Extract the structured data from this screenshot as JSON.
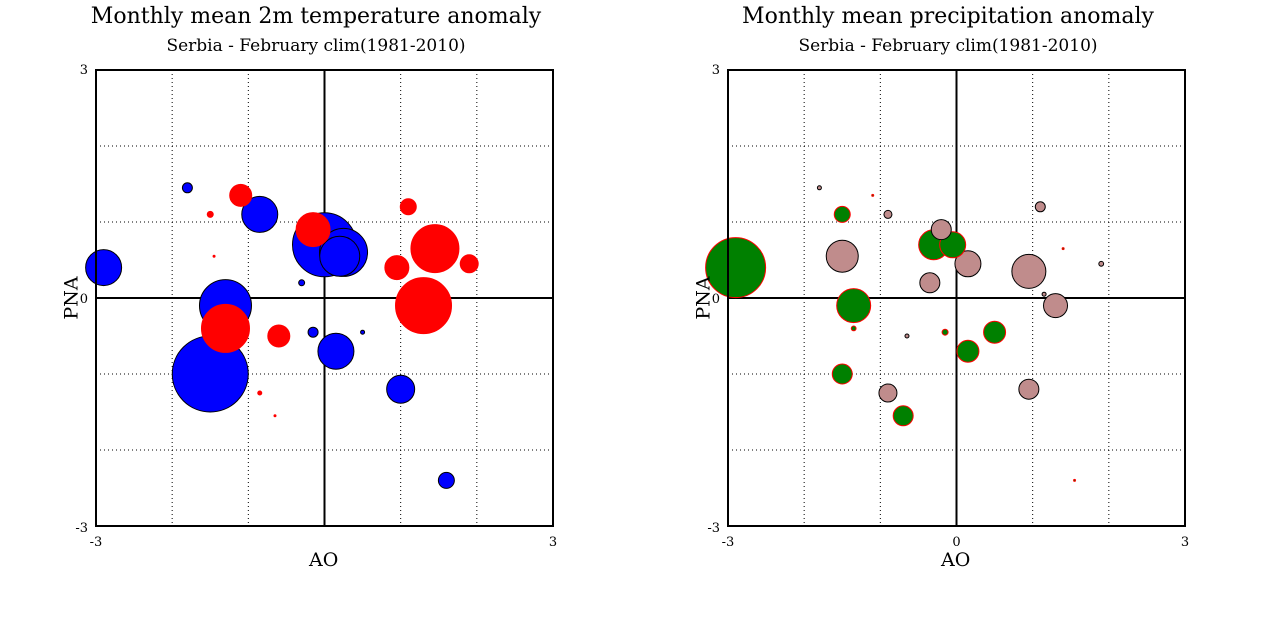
{
  "panels": [
    {
      "title": "Monthly mean 2m temperature anomaly",
      "subtitle": "Serbia - February  clim(1981-2010)"
    },
    {
      "title": "Monthly mean precipitation anomaly",
      "subtitle": "Serbia - February  clim(1981-2010)"
    }
  ],
  "chart_data": [
    {
      "type": "scatter",
      "title": "Monthly mean 2m temperature anomaly",
      "subtitle": "Serbia - February  clim(1981-2010)",
      "xlabel": "AO",
      "ylabel": "PNA",
      "xlim": [
        -3,
        3
      ],
      "ylim": [
        -3,
        3
      ],
      "x_ticks": [
        "-3",
        "3"
      ],
      "y_ticks": [
        "3",
        "0",
        "-3"
      ],
      "grid": true,
      "series": [
        {
          "color": "#0000ff",
          "points": [
            {
              "x": -2.9,
              "y": 0.4,
              "anomaly": 0.9
            },
            {
              "x": -1.8,
              "y": 1.45,
              "anomaly": 0.25
            },
            {
              "x": -0.85,
              "y": 1.1,
              "anomaly": 0.9
            },
            {
              "x": -0.3,
              "y": 0.2,
              "anomaly": 0.15
            },
            {
              "x": -0.15,
              "y": -0.45,
              "anomaly": 0.25
            },
            {
              "x": 0.2,
              "y": 0.55,
              "anomaly": 1.0
            },
            {
              "x": 0.25,
              "y": 0.6,
              "anomaly": 1.2
            },
            {
              "x": 0.0,
              "y": 0.7,
              "anomaly": 1.6
            },
            {
              "x": 0.5,
              "y": -0.45,
              "anomaly": 0.1
            },
            {
              "x": 0.15,
              "y": -0.7,
              "anomaly": 0.9
            },
            {
              "x": -1.3,
              "y": -0.1,
              "anomaly": 1.3
            },
            {
              "x": -1.5,
              "y": -1.0,
              "anomaly": 1.9
            },
            {
              "x": 1.0,
              "y": -1.2,
              "anomaly": 0.7
            },
            {
              "x": 1.6,
              "y": -2.4,
              "anomaly": 0.4
            }
          ]
        },
        {
          "color": "#ff0000",
          "points": [
            {
              "x": -1.1,
              "y": 1.35,
              "anomaly": 0.55
            },
            {
              "x": -1.5,
              "y": 1.1,
              "anomaly": 0.15
            },
            {
              "x": -1.45,
              "y": 0.55,
              "anomaly": 0.05
            },
            {
              "x": -0.15,
              "y": 0.9,
              "anomaly": 0.85
            },
            {
              "x": 1.1,
              "y": 1.2,
              "anomaly": 0.4
            },
            {
              "x": 1.45,
              "y": 0.65,
              "anomaly": 1.2
            },
            {
              "x": 1.9,
              "y": 0.45,
              "anomaly": 0.45
            },
            {
              "x": 0.95,
              "y": 0.4,
              "anomaly": 0.6
            },
            {
              "x": 1.3,
              "y": -0.1,
              "anomaly": 1.4
            },
            {
              "x": -1.3,
              "y": -0.4,
              "anomaly": 1.2
            },
            {
              "x": -0.6,
              "y": -0.5,
              "anomaly": 0.55
            },
            {
              "x": -0.85,
              "y": -1.25,
              "anomaly": 0.1
            },
            {
              "x": -0.65,
              "y": -1.55,
              "anomaly": 0.05
            }
          ]
        }
      ]
    },
    {
      "type": "scatter",
      "title": "Monthly mean precipitation anomaly",
      "subtitle": "Serbia - February  clim(1981-2010)",
      "xlabel": "AO",
      "ylabel": "PNA",
      "xlim": [
        -3,
        3
      ],
      "ylim": [
        -3,
        3
      ],
      "x_ticks": [
        "-3",
        "0",
        "3"
      ],
      "y_ticks": [
        "3",
        "0",
        "-3"
      ],
      "grid": true,
      "series": [
        {
          "color": "#c08c8c",
          "points": [
            {
              "x": -1.8,
              "y": 1.45,
              "anomaly": 0.1
            },
            {
              "x": -0.9,
              "y": 1.1,
              "anomaly": 0.2
            },
            {
              "x": -0.2,
              "y": 0.9,
              "anomaly": 0.5
            },
            {
              "x": -1.5,
              "y": 0.55,
              "anomaly": 0.8
            },
            {
              "x": 0.15,
              "y": 0.45,
              "anomaly": 0.65
            },
            {
              "x": -0.35,
              "y": 0.2,
              "anomaly": 0.5
            },
            {
              "x": 0.95,
              "y": 0.35,
              "anomaly": 0.85
            },
            {
              "x": 1.1,
              "y": 1.2,
              "anomaly": 0.25
            },
            {
              "x": 1.9,
              "y": 0.45,
              "anomaly": 0.12
            },
            {
              "x": 1.15,
              "y": 0.05,
              "anomaly": 0.1
            },
            {
              "x": 1.3,
              "y": -0.1,
              "anomaly": 0.6
            },
            {
              "x": -0.65,
              "y": -0.5,
              "anomaly": 0.1
            },
            {
              "x": -0.9,
              "y": -1.25,
              "anomaly": 0.45
            },
            {
              "x": 0.95,
              "y": -1.2,
              "anomaly": 0.5
            }
          ]
        },
        {
          "color": "#008000",
          "points": [
            {
              "x": -2.9,
              "y": 0.4,
              "anomaly": 1.5
            },
            {
              "x": -1.5,
              "y": 1.1,
              "anomaly": 0.4
            },
            {
              "x": -1.35,
              "y": -0.1,
              "anomaly": 0.85
            },
            {
              "x": -0.3,
              "y": 0.7,
              "anomaly": 0.75
            },
            {
              "x": -0.05,
              "y": 0.7,
              "anomaly": 0.65
            },
            {
              "x": -0.15,
              "y": -0.45,
              "anomaly": 0.15
            },
            {
              "x": 0.5,
              "y": -0.45,
              "anomaly": 0.55
            },
            {
              "x": 0.15,
              "y": -0.7,
              "anomaly": 0.55
            },
            {
              "x": -1.35,
              "y": -0.4,
              "anomaly": 0.12
            },
            {
              "x": -1.5,
              "y": -1.0,
              "anomaly": 0.5
            },
            {
              "x": -0.7,
              "y": -1.55,
              "anomaly": 0.5
            },
            {
              "x": -1.1,
              "y": 1.35,
              "anomaly": 0.05
            },
            {
              "x": 1.4,
              "y": 0.65,
              "anomaly": 0.05
            },
            {
              "x": 1.55,
              "y": -2.4,
              "anomaly": 0.05
            }
          ]
        }
      ]
    }
  ]
}
